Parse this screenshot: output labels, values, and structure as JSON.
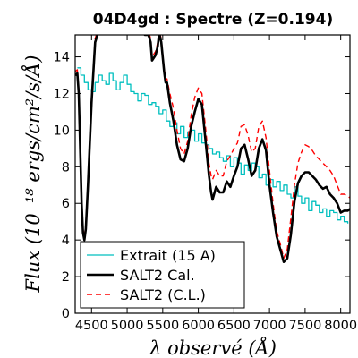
{
  "chart_data": {
    "type": "line",
    "title": "04D4gd : Spectre (Z=0.194)",
    "xlabel": "λ observé (Å)",
    "ylabel": "Flux (10⁻¹⁸ ergs/cm²/s/Å)",
    "xlim": [
      4270,
      8130
    ],
    "ylim": [
      0,
      15.2
    ],
    "xticks": [
      4500,
      5000,
      5500,
      6000,
      6500,
      7000,
      7500,
      8000
    ],
    "yticks": [
      0,
      2,
      4,
      6,
      8,
      10,
      12,
      14
    ],
    "grid": false,
    "legend_position": "lower-left",
    "colors": {
      "extrait": "#00bfbf",
      "cal": "#000000",
      "cl": "#ff0000"
    },
    "series": [
      {
        "name": "Extrait (15 A)",
        "style": "solid-thin",
        "x": [
          4300,
          4350,
          4400,
          4450,
          4500,
          4550,
          4600,
          4650,
          4700,
          4750,
          4800,
          4850,
          4900,
          4950,
          5000,
          5050,
          5100,
          5150,
          5200,
          5250,
          5300,
          5350,
          5400,
          5450,
          5500,
          5550,
          5600,
          5650,
          5700,
          5750,
          5800,
          5850,
          5900,
          5950,
          6000,
          6050,
          6100,
          6150,
          6200,
          6250,
          6300,
          6350,
          6400,
          6450,
          6500,
          6550,
          6600,
          6650,
          6700,
          6750,
          6800,
          6850,
          6900,
          6950,
          7000,
          7050,
          7100,
          7150,
          7200,
          7250,
          7300,
          7350,
          7400,
          7450,
          7500,
          7550,
          7600,
          7650,
          7700,
          7750,
          7800,
          7850,
          7900,
          7950,
          8000,
          8050,
          8100
        ],
        "y": [
          13.4,
          13.0,
          12.6,
          12.2,
          12.1,
          12.6,
          13.0,
          12.7,
          12.5,
          13.1,
          12.7,
          12.2,
          12.6,
          13.0,
          12.5,
          12.1,
          12.0,
          11.6,
          12.0,
          11.9,
          11.4,
          11.5,
          11.3,
          10.9,
          11.1,
          10.5,
          10.2,
          10.4,
          9.8,
          10.2,
          9.6,
          9.9,
          10.0,
          9.4,
          9.8,
          9.3,
          9.2,
          9.0,
          8.7,
          8.8,
          8.5,
          8.3,
          8.6,
          8.0,
          8.5,
          8.2,
          7.6,
          8.1,
          7.8,
          8.2,
          8.0,
          7.4,
          7.6,
          7.0,
          7.3,
          6.9,
          7.2,
          6.7,
          7.0,
          6.5,
          6.3,
          6.9,
          6.4,
          6.0,
          6.3,
          5.6,
          6.1,
          5.9,
          5.5,
          5.7,
          5.3,
          5.6,
          5.5,
          5.1,
          5.3,
          5.0,
          4.9
        ]
      },
      {
        "name": "SALT2 Cal.",
        "style": "solid-thick",
        "x": [
          4270,
          4300,
          4320,
          4340,
          4360,
          4380,
          4400,
          4420,
          4450,
          4500,
          4550,
          4600,
          4700,
          4800,
          4900,
          5000,
          5100,
          5200,
          5250,
          5300,
          5330,
          5350,
          5400,
          5430,
          5450,
          5480,
          5500,
          5520,
          5540,
          5560,
          5600,
          5650,
          5700,
          5750,
          5800,
          5850,
          5900,
          5950,
          6000,
          6050,
          6100,
          6150,
          6180,
          6200,
          6250,
          6300,
          6350,
          6400,
          6450,
          6500,
          6550,
          6600,
          6650,
          6700,
          6750,
          6800,
          6850,
          6900,
          6950,
          7000,
          7050,
          7100,
          7150,
          7200,
          7250,
          7300,
          7350,
          7400,
          7450,
          7500,
          7550,
          7600,
          7650,
          7700,
          7750,
          7800,
          7850,
          7900,
          7950,
          8000,
          8050,
          8100,
          8130
        ],
        "y": [
          13.0,
          13.1,
          12.0,
          9.0,
          6.0,
          4.4,
          4.0,
          4.6,
          7.0,
          11.5,
          14.8,
          15.4,
          15.8,
          15.6,
          15.4,
          15.6,
          15.5,
          15.4,
          15.2,
          15.2,
          14.8,
          13.8,
          14.1,
          14.6,
          15.3,
          14.8,
          14.0,
          13.2,
          12.6,
          12.6,
          11.5,
          10.5,
          9.2,
          8.4,
          8.3,
          9.0,
          10.2,
          11.0,
          11.7,
          11.4,
          9.5,
          7.5,
          6.6,
          6.2,
          6.9,
          6.6,
          6.6,
          7.2,
          6.9,
          7.5,
          8.0,
          9.0,
          9.2,
          8.4,
          7.5,
          7.8,
          9.0,
          9.5,
          8.9,
          7.0,
          5.5,
          4.2,
          3.5,
          2.8,
          3.0,
          4.3,
          6.1,
          7.1,
          7.5,
          7.7,
          7.7,
          7.5,
          7.3,
          7.0,
          6.8,
          6.9,
          6.5,
          6.3,
          6.0,
          5.5,
          5.6,
          5.6,
          5.7
        ]
      },
      {
        "name": "SALT2 (C.L.)",
        "style": "dashed",
        "x": [
          4270,
          4300,
          4320,
          4340,
          4360,
          4380,
          4400,
          4420,
          4450,
          4500,
          4550,
          4600,
          4700,
          4800,
          4900,
          5000,
          5100,
          5200,
          5250,
          5300,
          5330,
          5350,
          5400,
          5430,
          5450,
          5480,
          5500,
          5520,
          5540,
          5560,
          5600,
          5650,
          5700,
          5750,
          5800,
          5850,
          5900,
          5950,
          6000,
          6050,
          6100,
          6150,
          6180,
          6200,
          6250,
          6300,
          6350,
          6400,
          6450,
          6500,
          6550,
          6600,
          6650,
          6700,
          6750,
          6800,
          6850,
          6900,
          6950,
          7000,
          7050,
          7100,
          7150,
          7200,
          7250,
          7300,
          7350,
          7400,
          7450,
          7500,
          7550,
          7600,
          7650,
          7700,
          7750,
          7800,
          7850,
          7900,
          7950,
          8000,
          8050,
          8100,
          8130
        ],
        "y": [
          13.2,
          13.3,
          12.2,
          9.2,
          6.2,
          4.6,
          4.2,
          4.8,
          7.2,
          11.7,
          15.0,
          15.6,
          16.0,
          15.8,
          15.6,
          15.8,
          15.7,
          15.6,
          15.4,
          15.4,
          15.0,
          14.0,
          14.3,
          14.8,
          15.4,
          15.0,
          14.2,
          13.4,
          12.8,
          12.8,
          12.0,
          11.2,
          10.0,
          9.0,
          8.7,
          9.4,
          10.8,
          11.8,
          12.3,
          12.0,
          10.2,
          8.2,
          7.5,
          7.3,
          7.8,
          7.5,
          7.5,
          8.3,
          8.6,
          9.0,
          9.3,
          10.2,
          10.3,
          9.7,
          8.8,
          9.0,
          10.2,
          10.5,
          9.6,
          7.8,
          6.0,
          4.5,
          3.8,
          3.0,
          3.5,
          5.2,
          7.0,
          8.2,
          8.8,
          9.2,
          9.1,
          8.9,
          8.6,
          8.4,
          8.2,
          8.0,
          7.8,
          7.5,
          7.0,
          6.5,
          6.5,
          6.4,
          6.3
        ]
      }
    ]
  }
}
